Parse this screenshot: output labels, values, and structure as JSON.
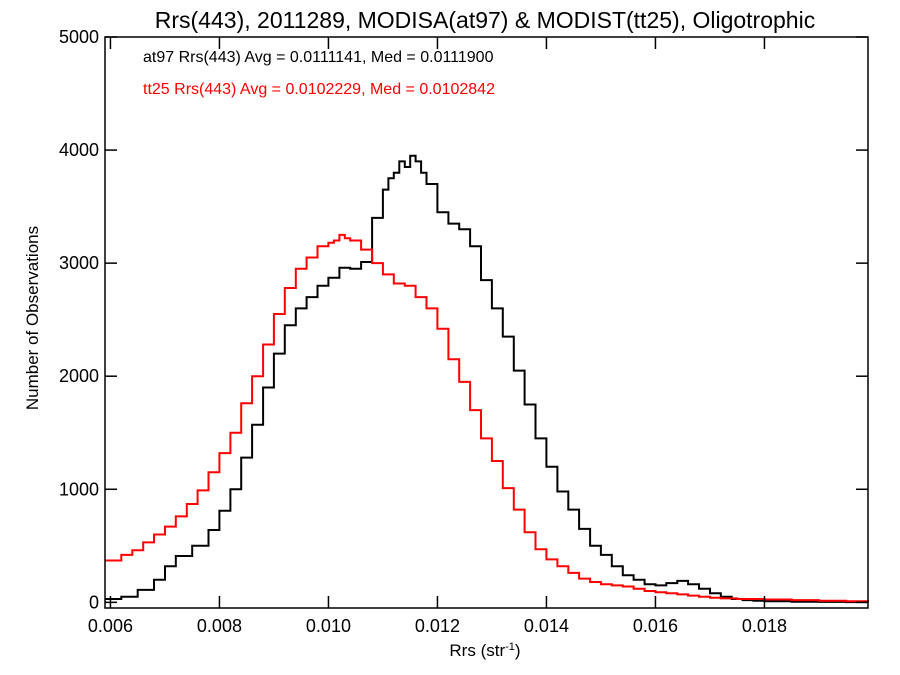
{
  "chart_data": {
    "type": "line",
    "title": "Rrs(443), 2011289, MODISA(at97) & MODIST(tt25), Oligotrophic",
    "xlabel": "Rrs (str",
    "xlabel_sup": "-1",
    "xlabel_suffix": ")",
    "ylabel": "Number of Observations",
    "xlim": [
      0.0059,
      0.0199
    ],
    "ylim": [
      -50,
      5000
    ],
    "xticks": [
      0.006,
      0.008,
      0.01,
      0.012,
      0.014,
      0.016,
      0.018
    ],
    "xtick_labels": [
      "0.006",
      "0.008",
      "0.010",
      "0.012",
      "0.014",
      "0.016",
      "0.018"
    ],
    "yticks": [
      0,
      1000,
      2000,
      3000,
      4000,
      5000
    ],
    "ytick_labels": [
      "0",
      "1000",
      "2000",
      "3000",
      "4000",
      "5000"
    ],
    "grid": false,
    "annotations": [
      {
        "text": "at97 Rrs(443) Avg = 0.0111141, Med = 0.0111900",
        "color": "#000000"
      },
      {
        "text": "tt25 Rrs(443) Avg = 0.0102229, Med = 0.0102842",
        "color": "#ff0000"
      }
    ],
    "series": [
      {
        "color": "#000000",
        "x": [
          0.0059,
          0.0062,
          0.0065,
          0.0068,
          0.007,
          0.0072,
          0.0075,
          0.0078,
          0.008,
          0.0082,
          0.0084,
          0.0086,
          0.0088,
          0.009,
          0.0092,
          0.0094,
          0.0096,
          0.0098,
          0.01,
          0.0102,
          0.0104,
          0.0106,
          0.0108,
          0.011,
          0.0111,
          0.0112,
          0.0113,
          0.0114,
          0.0115,
          0.0116,
          0.0117,
          0.0118,
          0.012,
          0.0122,
          0.0124,
          0.0126,
          0.0128,
          0.013,
          0.0132,
          0.0134,
          0.0136,
          0.0138,
          0.014,
          0.0142,
          0.0144,
          0.0146,
          0.0148,
          0.015,
          0.0152,
          0.0154,
          0.0156,
          0.0158,
          0.016,
          0.0162,
          0.0164,
          0.0166,
          0.0168,
          0.017,
          0.0172,
          0.0174,
          0.0176,
          0.0178,
          0.018,
          0.0185,
          0.019,
          0.0195,
          0.0199
        ],
        "y": [
          30,
          50,
          110,
          200,
          320,
          410,
          500,
          640,
          810,
          1000,
          1280,
          1570,
          1900,
          2200,
          2450,
          2600,
          2700,
          2800,
          2870,
          2960,
          2950,
          3010,
          3400,
          3650,
          3750,
          3800,
          3900,
          3850,
          3950,
          3900,
          3800,
          3700,
          3450,
          3350,
          3300,
          3150,
          2850,
          2600,
          2350,
          2050,
          1750,
          1450,
          1200,
          980,
          820,
          650,
          500,
          420,
          320,
          240,
          200,
          160,
          150,
          170,
          190,
          160,
          120,
          80,
          50,
          30,
          20,
          15,
          10,
          6,
          4,
          2,
          1
        ]
      },
      {
        "color": "#ff0000",
        "x": [
          0.0059,
          0.0062,
          0.0064,
          0.0066,
          0.0068,
          0.007,
          0.0072,
          0.0074,
          0.0076,
          0.0078,
          0.008,
          0.0082,
          0.0084,
          0.0086,
          0.0088,
          0.009,
          0.0092,
          0.0094,
          0.0096,
          0.0098,
          0.01,
          0.0101,
          0.0102,
          0.0103,
          0.0104,
          0.0106,
          0.0108,
          0.011,
          0.0112,
          0.0114,
          0.0116,
          0.0118,
          0.012,
          0.0122,
          0.0124,
          0.0126,
          0.0128,
          0.013,
          0.0132,
          0.0134,
          0.0136,
          0.0138,
          0.014,
          0.0142,
          0.0144,
          0.0146,
          0.0148,
          0.015,
          0.0152,
          0.0154,
          0.0156,
          0.0158,
          0.016,
          0.0162,
          0.0164,
          0.0166,
          0.0168,
          0.017,
          0.0172,
          0.0175,
          0.018,
          0.0185,
          0.019,
          0.0195,
          0.0199
        ],
        "y": [
          370,
          420,
          460,
          530,
          600,
          670,
          760,
          870,
          990,
          1150,
          1320,
          1500,
          1760,
          2000,
          2280,
          2550,
          2780,
          2950,
          3050,
          3150,
          3180,
          3200,
          3250,
          3220,
          3200,
          3120,
          3000,
          2900,
          2820,
          2800,
          2700,
          2600,
          2420,
          2150,
          1950,
          1700,
          1450,
          1250,
          1010,
          820,
          620,
          470,
          380,
          320,
          260,
          210,
          180,
          160,
          150,
          140,
          120,
          100,
          90,
          80,
          70,
          60,
          50,
          40,
          35,
          30,
          25,
          20,
          15,
          10,
          5
        ]
      }
    ]
  }
}
